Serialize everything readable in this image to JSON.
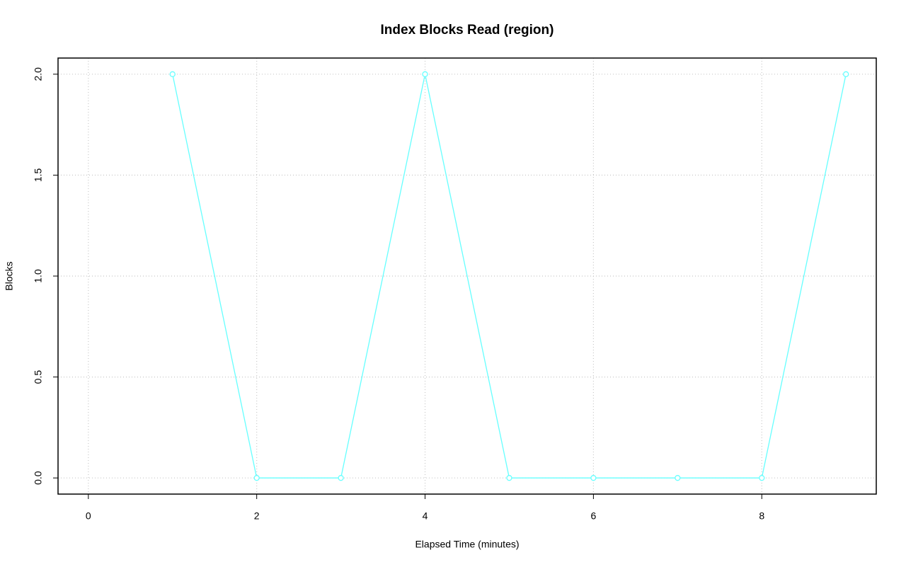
{
  "chart_data": {
    "type": "line",
    "title": "Index Blocks Read (region)",
    "x_label": "Elapsed Time (minutes)",
    "y_label": "Blocks",
    "x": [
      1,
      2,
      3,
      4,
      5,
      6,
      7,
      8,
      9
    ],
    "series": [
      {
        "color": "#66ffff",
        "values": [
          2,
          0,
          0,
          2,
          0,
          0,
          0,
          0,
          2
        ]
      }
    ],
    "xlim": [
      -0.36,
      9.36
    ],
    "xticks": [
      0,
      2,
      4,
      6,
      8
    ],
    "ylim": [
      -0.08,
      2.08
    ],
    "yticks": [
      {
        "value": 0,
        "label": "0.0"
      },
      0.5,
      {
        "value": 1,
        "label": "1.0"
      },
      1.5,
      {
        "value": 2,
        "label": "2.0"
      }
    ],
    "grid": true
  }
}
